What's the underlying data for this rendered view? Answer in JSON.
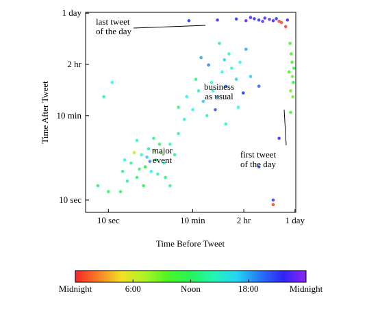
{
  "chart_data": {
    "type": "scatter",
    "xlabel": "Time Before Tweet",
    "ylabel": "Time After Tweet",
    "xscale": "log",
    "yscale": "log",
    "xlim": [
      3.3,
      90000
    ],
    "ylim": [
      5.5,
      90000
    ],
    "xticks": [
      {
        "value": 10,
        "label": "10 sec"
      },
      {
        "value": 600,
        "label": "10 min"
      },
      {
        "value": 7200,
        "label": "2 hr"
      },
      {
        "value": 86400,
        "label": "1 day"
      }
    ],
    "yticks": [
      {
        "value": 10,
        "label": "10 sec"
      },
      {
        "value": 600,
        "label": "10 min"
      },
      {
        "value": 7200,
        "label": "2 hr"
      },
      {
        "value": 86400,
        "label": "1 day"
      }
    ],
    "colormap": "rainbow",
    "x": [
      20,
      30,
      40,
      50,
      60,
      70,
      80,
      100,
      120,
      150,
      25,
      35,
      45,
      55,
      65,
      90,
      110,
      130,
      200,
      250,
      300,
      18,
      40,
      75,
      160,
      22,
      95,
      400,
      600,
      800,
      1000,
      1500,
      2000,
      2500,
      3000,
      4000,
      5000,
      6000,
      1200,
      700,
      900,
      1800,
      3500,
      7000,
      10000,
      450,
      2200,
      1300,
      5500,
      8000,
      300,
      3000,
      15000,
      1600,
      2800,
      500,
      2000,
      5000,
      8000,
      12000,
      15000,
      20000,
      25000,
      30000,
      35000,
      40000,
      45000,
      55000,
      10000,
      18000,
      60000,
      65000,
      70000,
      75000,
      80000,
      72000,
      78000,
      68000,
      82000,
      76000,
      70000,
      8,
      12,
      6,
      30000,
      30000,
      15000,
      40000,
      200,
      10
    ],
    "values": [
      40,
      60,
      30,
      90,
      50,
      120,
      40,
      70,
      150,
      60,
      25,
      100,
      45,
      20,
      80,
      200,
      35,
      100,
      150,
      90,
      250,
      15,
      180,
      65,
      30,
      70,
      110,
      500,
      800,
      2000,
      1200,
      3000,
      1500,
      5000,
      2500,
      6000,
      3500,
      8000,
      600,
      3500,
      10000,
      800,
      12000,
      1800,
      4000,
      1500,
      20000,
      7000,
      900,
      15000,
      900,
      400,
      2500,
      2000,
      9000,
      60000,
      62000,
      65000,
      60000,
      66000,
      62000,
      68000,
      64000,
      60000,
      66000,
      58000,
      55000,
      45000,
      70000,
      58000,
      62000,
      5000,
      2000,
      8000,
      3000,
      12000,
      1500,
      20000,
      6000,
      4000,
      700,
      1500,
      3000,
      20,
      10,
      8,
      50,
      200,
      20,
      15
    ],
    "color_values": [
      13,
      14,
      12,
      15,
      11,
      14,
      16,
      13,
      12,
      15,
      14,
      7,
      13,
      12,
      17,
      13,
      14,
      9,
      15,
      13,
      14,
      12,
      15,
      19,
      13,
      16,
      8,
      15,
      16,
      14,
      17,
      15,
      18,
      16,
      19,
      15,
      17,
      16,
      14,
      13,
      18,
      20,
      15,
      21,
      17,
      16,
      14,
      19,
      16,
      18,
      13,
      15,
      20,
      15,
      17,
      21,
      22,
      21,
      23,
      22,
      21,
      22,
      23,
      22,
      21,
      0.5,
      1,
      0.5,
      22,
      23,
      22,
      10,
      9,
      10,
      11,
      10,
      9,
      10,
      11,
      9,
      10,
      14,
      16,
      12,
      22,
      0.5,
      20,
      22,
      13,
      12
    ],
    "annotations": [
      {
        "lines": [
          "last tweet",
          "of the day"
        ]
      },
      {
        "lines": [
          "business",
          "as usual"
        ]
      },
      {
        "lines": [
          "major",
          "event"
        ]
      },
      {
        "lines": [
          "first tweet",
          "of the day"
        ]
      }
    ],
    "colorbar": {
      "lim": [
        0,
        24
      ],
      "ticks": [
        {
          "value": 0,
          "label": "Midnight"
        },
        {
          "value": 6,
          "label": "6:00"
        },
        {
          "value": 12,
          "label": "Noon"
        },
        {
          "value": 18,
          "label": "18:00"
        },
        {
          "value": 24,
          "label": "Midnight"
        }
      ]
    }
  }
}
